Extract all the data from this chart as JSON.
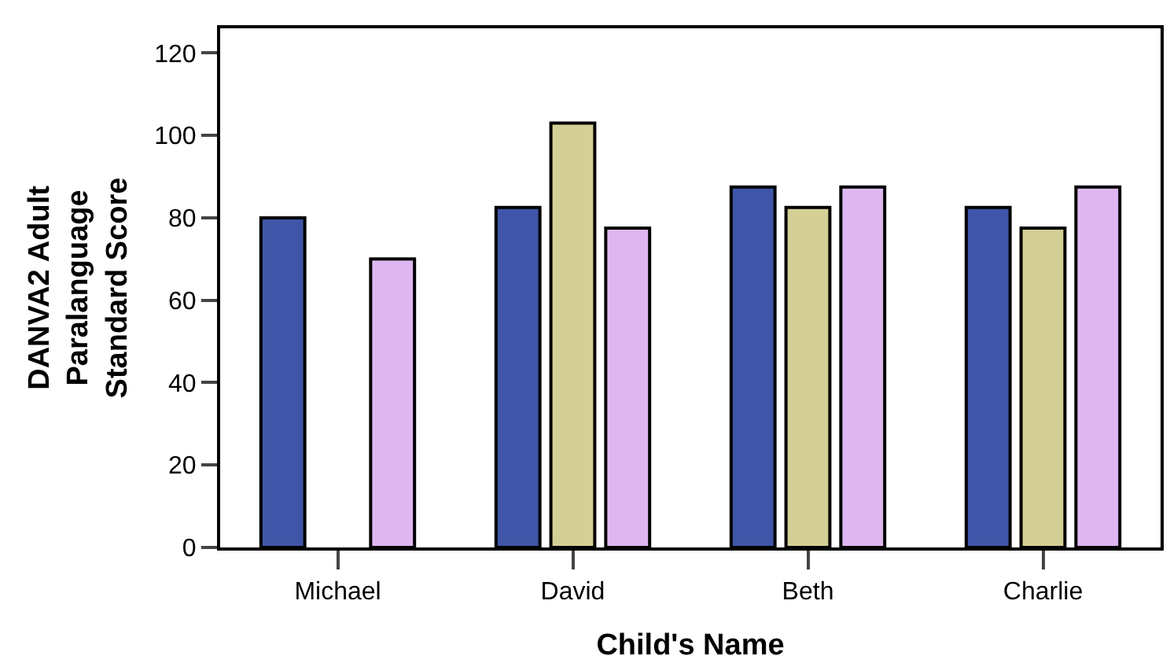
{
  "chart_data": {
    "type": "bar",
    "xlabel": "Child's Name",
    "ylabel": "DANVA2 Adult Paralanguage Standard Score",
    "categories": [
      "Michael",
      "David",
      "Beth",
      "Charlie"
    ],
    "series": [
      {
        "color": "#3f56a8",
        "values": [
          80,
          82.5,
          87.5,
          82.5
        ]
      },
      {
        "color": "#d4cf94",
        "values": [
          null,
          103,
          82.5,
          77.5
        ]
      },
      {
        "color": "#dfb7f0",
        "values": [
          70,
          77.5,
          87.5,
          87.5
        ]
      }
    ],
    "ylim": [
      0,
      126
    ],
    "yticks": [
      0,
      20,
      40,
      60,
      80,
      100,
      120
    ]
  }
}
